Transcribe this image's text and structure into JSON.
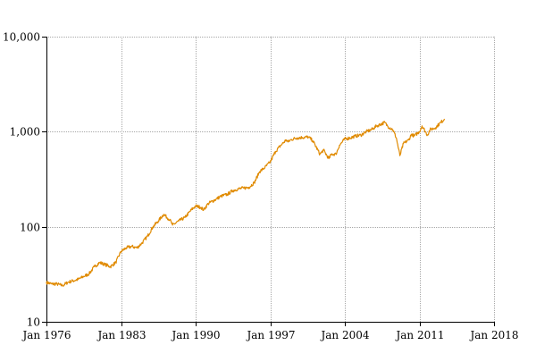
{
  "chart_data": {
    "type": "line",
    "title": "",
    "xlabel": "",
    "ylabel": "",
    "y_scale": "log",
    "ylim": [
      10,
      10000
    ],
    "xlim": [
      "1976-01",
      "2018-01"
    ],
    "grid": true,
    "colors": {
      "series": "#e08a00",
      "grid": "#a8a8a8",
      "axis": "#000000"
    },
    "y_ticks": [
      {
        "value": 10,
        "label": "10"
      },
      {
        "value": 100,
        "label": "100"
      },
      {
        "value": 1000,
        "label": "1,000"
      },
      {
        "value": 10000,
        "label": "10,000"
      }
    ],
    "x_ticks": [
      {
        "value": "1976-01",
        "label": "Jan 1976"
      },
      {
        "value": "1983-01",
        "label": "Jan 1983"
      },
      {
        "value": "1990-01",
        "label": "Jan 1990"
      },
      {
        "value": "1997-01",
        "label": "Jan 1997"
      },
      {
        "value": "2004-01",
        "label": "Jan 2004"
      },
      {
        "value": "2011-01",
        "label": "Jan 2011"
      },
      {
        "value": "2018-01",
        "label": "Jan 2018"
      }
    ],
    "series": [
      {
        "x": [
          "1976-01",
          "1976-07",
          "1977-01",
          "1977-07",
          "1978-01",
          "1978-07",
          "1979-01",
          "1979-07",
          "1980-01",
          "1980-07",
          "1981-01",
          "1981-07",
          "1982-01",
          "1982-07",
          "1983-01",
          "1983-07",
          "1984-01",
          "1984-07",
          "1985-01",
          "1985-07",
          "1986-01",
          "1986-07",
          "1987-01",
          "1987-08",
          "1987-11",
          "1988-06",
          "1989-01",
          "1989-08",
          "1990-01",
          "1990-07",
          "1990-10",
          "1991-03",
          "1991-12",
          "1992-06",
          "1993-01",
          "1993-07",
          "1994-01",
          "1994-07",
          "1995-01",
          "1995-07",
          "1996-01",
          "1996-07",
          "1997-01",
          "1997-07",
          "1998-01",
          "1998-07",
          "1998-09",
          "1999-01",
          "1999-07",
          "2000-01",
          "2000-08",
          "2001-01",
          "2001-09",
          "2002-01",
          "2002-07",
          "2002-10",
          "2003-03",
          "2003-07",
          "2004-01",
          "2004-07",
          "2005-01",
          "2005-07",
          "2006-01",
          "2006-07",
          "2007-01",
          "2007-10",
          "2008-01",
          "2008-07",
          "2008-11",
          "2009-03",
          "2009-07",
          "2010-01",
          "2010-04",
          "2010-07",
          "2011-01",
          "2011-04",
          "2011-10",
          "2012-01",
          "2012-07",
          "2013-01",
          "2013-05"
        ],
        "values": [
          26,
          25,
          25,
          24,
          26,
          27,
          28,
          30,
          32,
          38,
          42,
          40,
          38,
          42,
          55,
          60,
          62,
          60,
          68,
          80,
          100,
          115,
          135,
          118,
          104,
          115,
          125,
          150,
          165,
          160,
          150,
          175,
          195,
          210,
          220,
          240,
          250,
          255,
          260,
          290,
          380,
          420,
          480,
          620,
          720,
          820,
          780,
          830,
          860,
          870,
          880,
          800,
          580,
          640,
          520,
          580,
          580,
          720,
          840,
          860,
          900,
          920,
          1000,
          1050,
          1150,
          1250,
          1150,
          1050,
          860,
          560,
          750,
          820,
          940,
          900,
          1000,
          1150,
          920,
          1050,
          1100,
          1250,
          1350
        ]
      }
    ]
  }
}
